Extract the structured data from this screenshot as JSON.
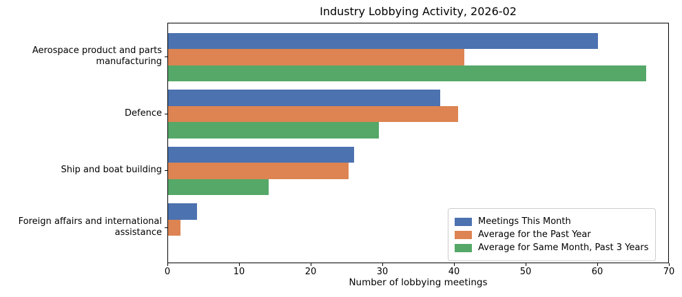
{
  "chart_data": {
    "type": "bar",
    "orientation": "horizontal",
    "title": "Industry Lobbying Activity, 2026-02",
    "xlabel": "Number of lobbying meetings",
    "xlim": [
      0,
      70
    ],
    "xticks": [
      0,
      10,
      20,
      30,
      40,
      50,
      60,
      70
    ],
    "grid": false,
    "legend_position": "lower right",
    "categories": [
      "Aerospace product and parts\nmanufacturing",
      "Defence",
      "Ship and boat building",
      "Foreign affairs and international\nassistance"
    ],
    "series": [
      {
        "name": "Meetings This Month",
        "color": "#4C72B0",
        "values": [
          60,
          38,
          26,
          4
        ]
      },
      {
        "name": "Average for the Past Year",
        "color": "#DD8452",
        "values": [
          41.3,
          40.5,
          25.2,
          1.7
        ]
      },
      {
        "name": "Average for Same Month, Past 3 Years",
        "color": "#55A868",
        "values": [
          66.7,
          29.4,
          14,
          0
        ]
      }
    ]
  }
}
